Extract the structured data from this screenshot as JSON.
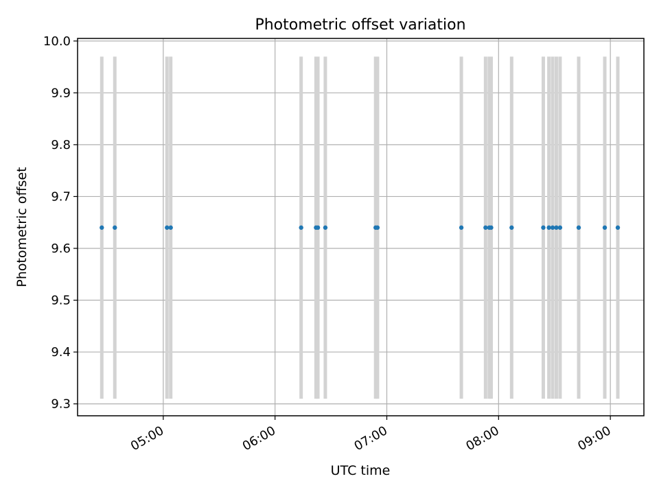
{
  "chart_data": {
    "type": "scatter",
    "title": "Photometric offset variation",
    "xlabel": "UTC time",
    "ylabel": "Photometric offset",
    "x_tick_labels": [
      "05:00",
      "06:00",
      "07:00",
      "08:00",
      "09:00"
    ],
    "x_ticks": [
      "05:00",
      "06:00",
      "07:00",
      "08:00",
      "09:00"
    ],
    "y_tick_labels": [
      "9.3",
      "9.4",
      "9.5",
      "9.6",
      "9.7",
      "9.8",
      "9.9",
      "10.0"
    ],
    "y_ticks": [
      9.3,
      9.4,
      9.5,
      9.6,
      9.7,
      9.8,
      9.9,
      10.0
    ],
    "xlim": [
      "04:14",
      "09:18"
    ],
    "ylim": [
      9.277,
      10.005
    ],
    "grid": true,
    "series": [
      {
        "x": [
          "04:27",
          "04:34",
          "05:02",
          "05:04",
          "06:14",
          "06:22",
          "06:23",
          "06:27",
          "06:54",
          "06:55",
          "07:40",
          "07:53",
          "07:55",
          "07:56",
          "08:07",
          "08:24",
          "08:27",
          "08:29",
          "08:31",
          "08:33",
          "08:43",
          "08:57",
          "09:04"
        ],
        "values": [
          9.64,
          9.64,
          9.64,
          9.64,
          9.64,
          9.64,
          9.64,
          9.64,
          9.64,
          9.64,
          9.64,
          9.64,
          9.64,
          9.64,
          9.64,
          9.64,
          9.64,
          9.64,
          9.64,
          9.64,
          9.64,
          9.64,
          9.64
        ],
        "color": "#1f77b4",
        "vline_range": [
          9.31,
          9.97
        ],
        "vline_color": "#d3d3d3"
      }
    ]
  }
}
